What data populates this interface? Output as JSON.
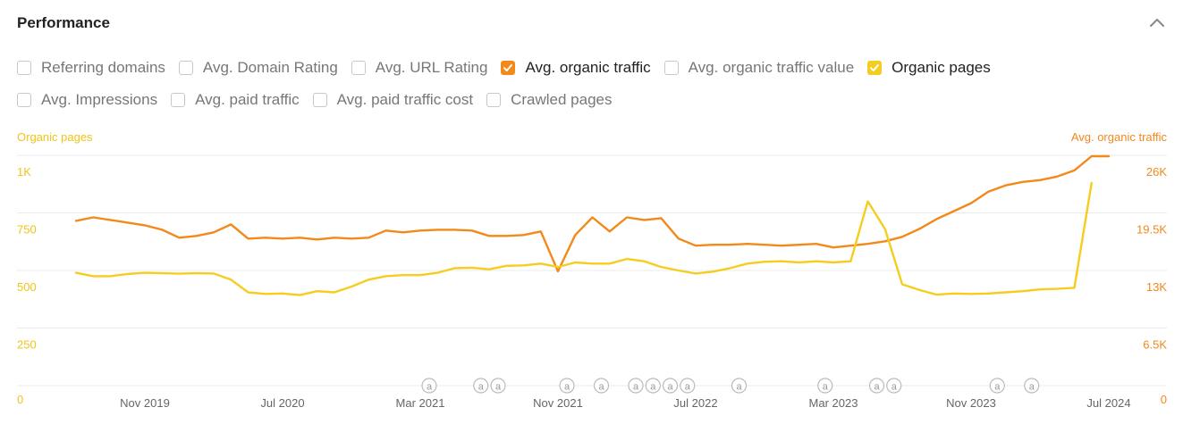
{
  "panel": {
    "title": "Performance",
    "collapse_icon": "chevron-up-icon"
  },
  "metrics": {
    "row1": [
      {
        "label": "Referring domains",
        "checked": false
      },
      {
        "label": "Avg. Domain Rating",
        "checked": false
      },
      {
        "label": "Avg. URL Rating",
        "checked": false
      },
      {
        "label": "Avg. organic traffic",
        "checked": true,
        "color": "#f2891a"
      },
      {
        "label": "Avg. organic traffic value",
        "checked": false
      },
      {
        "label": "Organic pages",
        "checked": true,
        "color": "#f5cd1f"
      }
    ],
    "row2": [
      {
        "label": "Avg. Impressions",
        "checked": false
      },
      {
        "label": "Avg. paid traffic",
        "checked": false
      },
      {
        "label": "Avg. paid traffic cost",
        "checked": false
      },
      {
        "label": "Crawled pages",
        "checked": false
      }
    ]
  },
  "chart_data": {
    "type": "line",
    "left_axis_title": "Organic pages",
    "right_axis_title": "Avg. organic traffic",
    "left_ticks": [
      "0",
      "250",
      "500",
      "750",
      "1K"
    ],
    "right_ticks": [
      "0",
      "6.5K",
      "13K",
      "19.5K",
      "26K"
    ],
    "left_ylim": [
      0,
      1000
    ],
    "right_ylim": [
      0,
      26000
    ],
    "x_tick_labels": [
      "Nov 2019",
      "Jul 2020",
      "Mar 2021",
      "Nov 2021",
      "Jul 2022",
      "Mar 2023",
      "Nov 2023",
      "Jul 2024"
    ],
    "x_range": [
      "2019-07",
      "2024-07"
    ],
    "series": [
      {
        "name": "Avg. organic traffic",
        "axis": "right",
        "color": "#f2891a",
        "points": [
          [
            "2019-07",
            18600
          ],
          [
            "2019-08",
            19000
          ],
          [
            "2019-09",
            18700
          ],
          [
            "2019-10",
            18400
          ],
          [
            "2019-11",
            18100
          ],
          [
            "2019-12",
            17600
          ],
          [
            "2020-01",
            16700
          ],
          [
            "2020-02",
            16900
          ],
          [
            "2020-03",
            17300
          ],
          [
            "2020-04",
            18200
          ],
          [
            "2020-05",
            16600
          ],
          [
            "2020-06",
            16700
          ],
          [
            "2020-07",
            16600
          ],
          [
            "2020-08",
            16700
          ],
          [
            "2020-09",
            16500
          ],
          [
            "2020-10",
            16700
          ],
          [
            "2020-11",
            16600
          ],
          [
            "2020-12",
            16700
          ],
          [
            "2021-01",
            17500
          ],
          [
            "2021-02",
            17300
          ],
          [
            "2021-03",
            17500
          ],
          [
            "2021-04",
            17600
          ],
          [
            "2021-05",
            17600
          ],
          [
            "2021-06",
            17500
          ],
          [
            "2021-07",
            16900
          ],
          [
            "2021-08",
            16900
          ],
          [
            "2021-09",
            17000
          ],
          [
            "2021-10",
            17400
          ],
          [
            "2021-11",
            12900
          ],
          [
            "2021-12",
            17000
          ],
          [
            "2022-01",
            19000
          ],
          [
            "2022-02",
            17400
          ],
          [
            "2022-03",
            19000
          ],
          [
            "2022-04",
            18700
          ],
          [
            "2022-05",
            18900
          ],
          [
            "2022-06",
            16600
          ],
          [
            "2022-07",
            15800
          ],
          [
            "2022-08",
            15900
          ],
          [
            "2022-09",
            15900
          ],
          [
            "2022-10",
            16000
          ],
          [
            "2022-11",
            15900
          ],
          [
            "2022-12",
            15800
          ],
          [
            "2023-01",
            15900
          ],
          [
            "2023-02",
            16000
          ],
          [
            "2023-03",
            15600
          ],
          [
            "2023-04",
            15800
          ],
          [
            "2023-05",
            16000
          ],
          [
            "2023-06",
            16300
          ],
          [
            "2023-07",
            16800
          ],
          [
            "2023-08",
            17700
          ],
          [
            "2023-09",
            18800
          ],
          [
            "2023-10",
            19700
          ],
          [
            "2023-11",
            20600
          ],
          [
            "2023-12",
            21900
          ],
          [
            "2024-01",
            22600
          ],
          [
            "2024-02",
            23000
          ],
          [
            "2024-03",
            23200
          ],
          [
            "2024-04",
            23600
          ],
          [
            "2024-05",
            24300
          ],
          [
            "2024-06",
            25900
          ],
          [
            "2024-07",
            25900
          ]
        ]
      },
      {
        "name": "Organic pages",
        "axis": "left",
        "color": "#f5cd1f",
        "points": [
          [
            "2019-07",
            490
          ],
          [
            "2019-08",
            475
          ],
          [
            "2019-09",
            475
          ],
          [
            "2019-10",
            485
          ],
          [
            "2019-11",
            490
          ],
          [
            "2019-12",
            488
          ],
          [
            "2020-01",
            486
          ],
          [
            "2020-02",
            488
          ],
          [
            "2020-03",
            487
          ],
          [
            "2020-04",
            460
          ],
          [
            "2020-05",
            405
          ],
          [
            "2020-06",
            398
          ],
          [
            "2020-07",
            400
          ],
          [
            "2020-08",
            393
          ],
          [
            "2020-09",
            410
          ],
          [
            "2020-10",
            405
          ],
          [
            "2020-11",
            430
          ],
          [
            "2020-12",
            460
          ],
          [
            "2021-01",
            475
          ],
          [
            "2021-02",
            480
          ],
          [
            "2021-03",
            480
          ],
          [
            "2021-04",
            490
          ],
          [
            "2021-05",
            510
          ],
          [
            "2021-06",
            512
          ],
          [
            "2021-07",
            505
          ],
          [
            "2021-08",
            520
          ],
          [
            "2021-09",
            522
          ],
          [
            "2021-10",
            530
          ],
          [
            "2021-11",
            515
          ],
          [
            "2021-12",
            535
          ],
          [
            "2022-01",
            530
          ],
          [
            "2022-02",
            530
          ],
          [
            "2022-03",
            550
          ],
          [
            "2022-04",
            540
          ],
          [
            "2022-05",
            515
          ],
          [
            "2022-06",
            500
          ],
          [
            "2022-07",
            487
          ],
          [
            "2022-08",
            495
          ],
          [
            "2022-09",
            510
          ],
          [
            "2022-10",
            530
          ],
          [
            "2022-11",
            538
          ],
          [
            "2022-12",
            540
          ],
          [
            "2023-01",
            535
          ],
          [
            "2023-02",
            540
          ],
          [
            "2023-03",
            535
          ],
          [
            "2023-04",
            540
          ],
          [
            "2023-05",
            800
          ],
          [
            "2023-06",
            680
          ],
          [
            "2023-07",
            440
          ],
          [
            "2023-08",
            415
          ],
          [
            "2023-09",
            395
          ],
          [
            "2023-10",
            400
          ],
          [
            "2023-11",
            398
          ],
          [
            "2023-12",
            400
          ],
          [
            "2024-01",
            405
          ],
          [
            "2024-02",
            410
          ],
          [
            "2024-03",
            418
          ],
          [
            "2024-04",
            420
          ],
          [
            "2024-05",
            425
          ],
          [
            "2024-06",
            880
          ]
        ]
      }
    ],
    "annotations": {
      "label": "a",
      "dates": [
        "2021-03",
        "2021-06",
        "2021-07",
        "2021-11",
        "2022-01",
        "2022-03",
        "2022-04",
        "2022-05",
        "2022-06",
        "2022-09",
        "2023-02",
        "2023-05",
        "2023-06",
        "2023-12",
        "2024-02"
      ]
    },
    "grid": true,
    "legend": "none"
  }
}
